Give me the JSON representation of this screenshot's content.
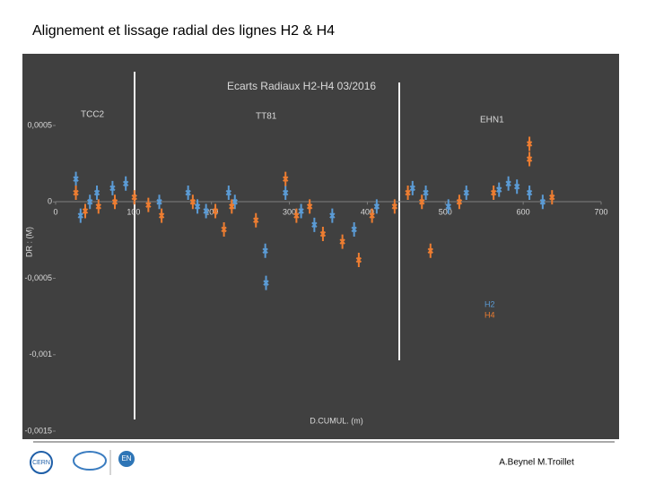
{
  "title": "Alignement et lissage radial des lignes H2 & H4",
  "chart_data": {
    "type": "scatter",
    "title": "Ecarts Radiaux H2-H4   03/2016",
    "x_label": "D.CUMUL. (m)",
    "y_label": "DR : (M)",
    "annotations": [
      "TCC2",
      "TT81",
      "EHN1"
    ],
    "xlim": [
      0,
      700
    ],
    "xticks": [
      0,
      100,
      200,
      300,
      400,
      500,
      600,
      700
    ],
    "ylim": [
      -0.0015,
      0.001
    ],
    "yticks": [
      {
        "value": 0.0005,
        "label": "0,0005"
      },
      0,
      {
        "value": -0.0005,
        "label": "-0,0005"
      },
      {
        "value": -0.001,
        "label": "-0,001"
      },
      {
        "value": -0.0015,
        "label": "-0,0015"
      }
    ],
    "legend": "right",
    "series": [
      {
        "name": "H2",
        "color": "#5b9bd5",
        "x": [
          26,
          32,
          44,
          53,
          73,
          90,
          133,
          170,
          182,
          193,
          222,
          230,
          269,
          270,
          295,
          315,
          332,
          355,
          383,
          412,
          458,
          475,
          504,
          527,
          569,
          581,
          592,
          608,
          625
        ],
        "values": [
          0.00015,
          -9e-05,
          0,
          6e-05,
          9e-05,
          0.00012,
          0,
          6e-05,
          -3e-05,
          -6e-05,
          6e-05,
          0,
          -0.00032,
          -0.00053,
          6e-05,
          -6e-05,
          -0.00015,
          -9e-05,
          -0.00018,
          -3e-05,
          9e-05,
          6e-05,
          -3e-05,
          6e-05,
          8e-05,
          0.00012,
          0.0001,
          6e-05,
          0
        ]
      },
      {
        "name": "H4",
        "color": "#ed7d31",
        "x": [
          26,
          38,
          55,
          76,
          101,
          119,
          136,
          176,
          205,
          216,
          226,
          257,
          295,
          309,
          326,
          343,
          368,
          389,
          406,
          435,
          452,
          470,
          481,
          518,
          562,
          608,
          608,
          637
        ],
        "values": [
          6e-05,
          -6e-05,
          -3e-05,
          0,
          3e-05,
          -2e-05,
          -9e-05,
          0,
          -6e-05,
          -0.00018,
          -3e-05,
          -0.00012,
          0.00015,
          -9e-05,
          -3e-05,
          -0.00021,
          -0.00026,
          -0.00038,
          -9e-05,
          -3e-05,
          6e-05,
          0,
          -0.00032,
          0,
          6e-05,
          0.00038,
          0.00028,
          3e-05
        ]
      }
    ]
  },
  "footer": {
    "authors": "A.Beynel M.Troillet",
    "logos": [
      "CERN",
      "EN"
    ]
  }
}
